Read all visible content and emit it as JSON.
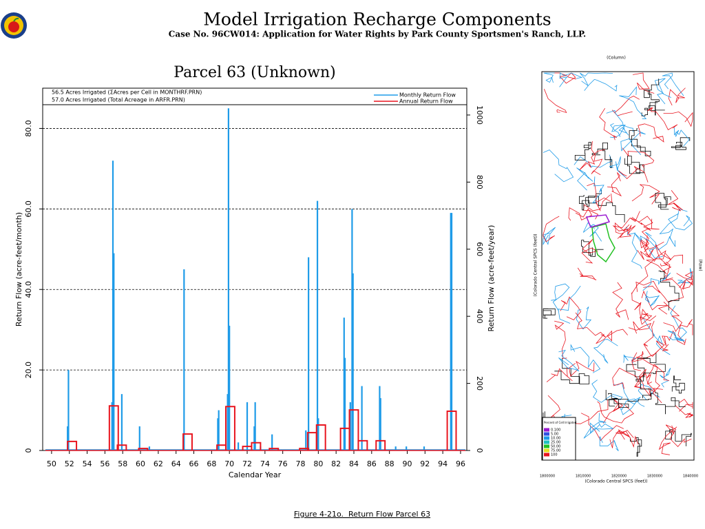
{
  "header": {
    "title": "Model Irrigation Recharge Components",
    "subtitle": "Case No. 96CW014: Application for Water Rights by Park County Sportsmen's Ranch, LLP."
  },
  "chart_data": {
    "type": "line",
    "title": "Parcel 63 (Unknown)",
    "x_label": "Calendar Year",
    "y_label": "Return Flow (acre-feet/month)",
    "y2_label": "Return Flow (acre-feet/year)",
    "annotations": [
      "56.5 Acres Irrigated (ΣAcres per Cell in MONTHRF.PRN)",
      "57.0 Acres Irrigated (Total Acreage in ARFR.PRN)"
    ],
    "xlim": [
      49,
      96.7
    ],
    "xticks": [
      50,
      52,
      54,
      56,
      58,
      60,
      62,
      64,
      66,
      68,
      70,
      72,
      74,
      76,
      78,
      80,
      82,
      84,
      86,
      88,
      90,
      92,
      94,
      96
    ],
    "ylim": [
      0,
      90
    ],
    "yticks": [
      0,
      {
        "value": 20,
        "label": "20.0"
      },
      {
        "value": 40,
        "label": "40.0"
      },
      {
        "value": 60,
        "label": "60.0"
      },
      {
        "value": 80,
        "label": "80.0"
      }
    ],
    "y2lim": [
      0,
      1080
    ],
    "y2ticks": [
      0,
      200,
      400,
      600,
      800,
      1000
    ],
    "grid": true,
    "legend": "upper right",
    "series": [
      {
        "name": "Monthly Return Flow",
        "color": "#1e9be8",
        "style": "stem",
        "x": [
          51.8,
          51.9,
          56.8,
          56.9,
          57.0,
          57.9,
          59.9,
          61.0,
          64.9,
          68.7,
          68.8,
          69.8,
          69.9,
          70.0,
          71.0,
          72.0,
          72.8,
          72.9,
          73.5,
          74.8,
          78.6,
          78.9,
          79.9,
          80.0,
          82.9,
          83.0,
          83.6,
          83.8,
          83.9,
          84.9,
          86.9,
          87.0,
          88.7,
          89.9,
          91.9,
          94.9,
          95.0
        ],
        "values": [
          6,
          20,
          12,
          72,
          49,
          14,
          6,
          1,
          45,
          8,
          10,
          14,
          85,
          31,
          2,
          12,
          6,
          12,
          1,
          4,
          5,
          48,
          62,
          8,
          33,
          23,
          12,
          60,
          44,
          16,
          16,
          13,
          1,
          1,
          1,
          59,
          59
        ]
      },
      {
        "name": "Annual Return Flow",
        "color": "#e8141e",
        "style": "step",
        "axis": "y2",
        "x": [
          52.3,
          57.0,
          57.9,
          60.3,
          65.3,
          69.1,
          70.1,
          72.0,
          73.0,
          75.0,
          78.4,
          79.3,
          80.3,
          83.0,
          84.0,
          85.0,
          87.0,
          95.0
        ],
        "values": [
          27,
          133,
          16,
          6,
          49,
          16,
          131,
          12,
          23,
          6,
          6,
          53,
          76,
          66,
          121,
          29,
          29,
          117
        ]
      }
    ]
  },
  "caption": "Figure 4-21o.  Return Flow Parcel 63",
  "map": {
    "top_axis_label": "(Column)",
    "right_axis_label": "(Row)",
    "x_axis_label": "(Colorado Central SPCS (feet))",
    "legend_title": "Percent of Cell Irrigated",
    "legend_entries": [
      "0.100",
      "5.00",
      "10.00",
      "25.00",
      "50.00",
      "75.00",
      "100"
    ],
    "xticks": [
      "1800000",
      "1810000",
      "1820000",
      "1830000",
      "1840000"
    ]
  }
}
